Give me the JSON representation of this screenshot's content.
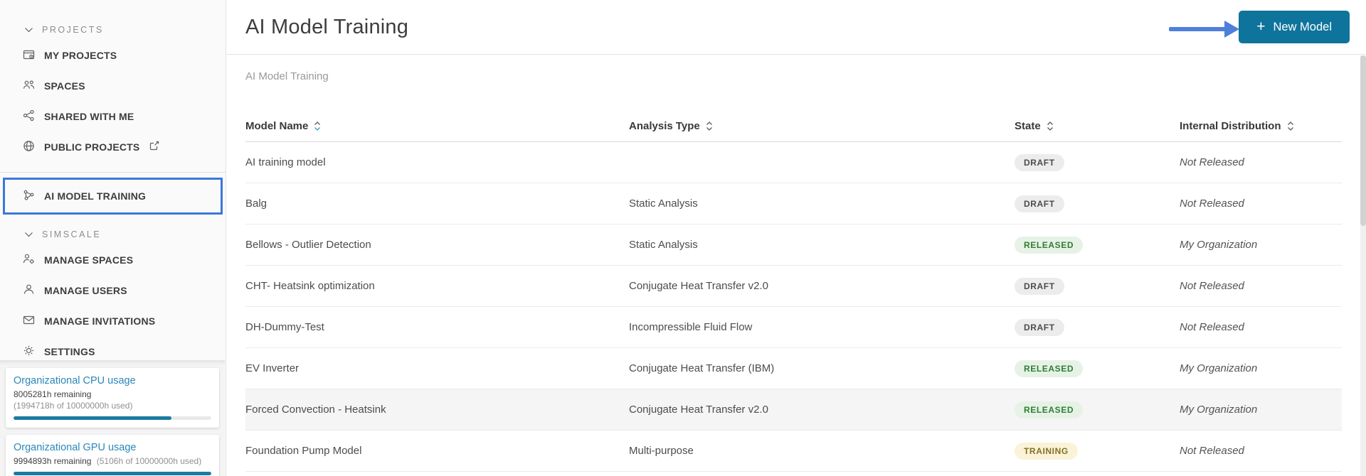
{
  "colors": {
    "button_teal": "#0f749c",
    "progress_fill": "#1b7aa2",
    "usage_link_blue": "#2b87b8",
    "annotation_arrow_blue": "#4d7fdb",
    "annotation_box_blue": "#3d76dd",
    "badge_draft_bg": "#ececec",
    "badge_released_bg": "#e7f2e6",
    "badge_released_text": "#2f7d33",
    "badge_training_bg": "#fbf3d8",
    "badge_training_text": "#827124"
  },
  "sidebar": {
    "projects_section": {
      "label": "PROJECTS",
      "icon": "chevron-down-icon"
    },
    "items_projects": [
      {
        "label": "MY PROJECTS",
        "icon": "projects-icon"
      },
      {
        "label": "SPACES",
        "icon": "spaces-icon"
      },
      {
        "label": "SHARED WITH ME",
        "icon": "share-icon"
      },
      {
        "label": "PUBLIC PROJECTS",
        "icon": "globe-icon",
        "trailing_icon": "external-link-icon"
      }
    ],
    "ai_model_training": {
      "label": "AI MODEL TRAINING",
      "icon": "network-icon",
      "highlighted": true
    },
    "simscale_section": {
      "label": "SIMSCALE",
      "icon": "chevron-down-icon"
    },
    "items_simscale": [
      {
        "label": "MANAGE SPACES",
        "icon": "person-gear-icon"
      },
      {
        "label": "MANAGE USERS",
        "icon": "person-icon"
      },
      {
        "label": "MANAGE INVITATIONS",
        "icon": "envelope-icon"
      },
      {
        "label": "SETTINGS",
        "icon": "gear-icon"
      }
    ],
    "usage": {
      "cpu": {
        "title": "Organizational CPU usage",
        "remaining": "8005281h remaining",
        "used": "(1994718h of 10000000h used)",
        "remaining_pct": 80
      },
      "gpu": {
        "title": "Organizational GPU usage",
        "remaining": "9994893h remaining",
        "used": "(5106h of 10000000h used)",
        "remaining_pct": 99.9
      }
    }
  },
  "main": {
    "title": "AI Model Training",
    "breadcrumb": "AI Model Training",
    "new_model_button": {
      "plus": "+",
      "label": "New Model"
    },
    "table": {
      "columns": [
        {
          "label": "Model Name",
          "sortable": true,
          "sort_active": true
        },
        {
          "label": "Analysis Type",
          "sortable": true,
          "sort_active": false
        },
        {
          "label": "State",
          "sortable": true,
          "sort_active": false
        },
        {
          "label": "Internal Distribution",
          "sortable": true,
          "sort_active": false
        }
      ],
      "rows": [
        {
          "name": "AI training model",
          "analysis": "",
          "state": "DRAFT",
          "distribution": "Not Released"
        },
        {
          "name": "Balg",
          "analysis": "Static Analysis",
          "state": "DRAFT",
          "distribution": "Not Released"
        },
        {
          "name": "Bellows - Outlier Detection",
          "analysis": "Static Analysis",
          "state": "RELEASED",
          "distribution": "My Organization"
        },
        {
          "name": "CHT- Heatsink optimization",
          "analysis": "Conjugate Heat Transfer v2.0",
          "state": "DRAFT",
          "distribution": "Not Released"
        },
        {
          "name": "DH-Dummy-Test",
          "analysis": "Incompressible Fluid Flow",
          "state": "DRAFT",
          "distribution": "Not Released"
        },
        {
          "name": "EV Inverter",
          "analysis": "Conjugate Heat Transfer (IBM)",
          "state": "RELEASED",
          "distribution": "My Organization"
        },
        {
          "name": "Forced Convection - Heatsink",
          "analysis": "Conjugate Heat Transfer v2.0",
          "state": "RELEASED",
          "distribution": "My Organization"
        },
        {
          "name": "Foundation Pump Model",
          "analysis": "Multi-purpose",
          "state": "TRAINING",
          "distribution": "Not Released"
        }
      ]
    }
  }
}
